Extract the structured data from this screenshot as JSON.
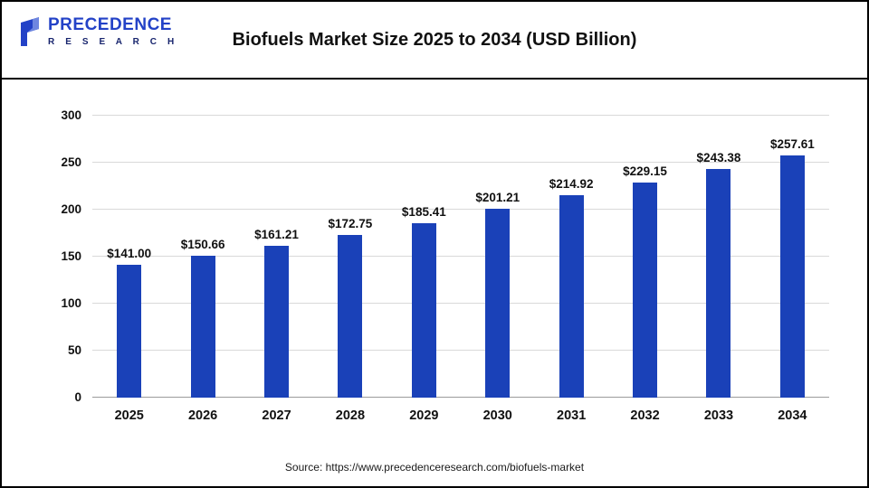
{
  "header": {
    "logo_line1": "PRECEDENCE",
    "logo_line2": "R E S E A R C H",
    "title": "Biofuels Market Size 2025 to 2034 (USD Billion)"
  },
  "footer": {
    "source": "Source: https://www.precedenceresearch.com/biofuels-market"
  },
  "colors": {
    "bar": "#1a41b8",
    "logo_blue": "#2342c7",
    "logo_navy": "#17246d",
    "gridline": "#d9d9d9",
    "axis_line": "#9b9b9b"
  },
  "chart_data": {
    "type": "bar",
    "title": "Biofuels Market Size 2025 to 2034 (USD Billion)",
    "categories": [
      "2025",
      "2026",
      "2027",
      "2028",
      "2029",
      "2030",
      "2031",
      "2032",
      "2033",
      "2034"
    ],
    "values": [
      141.0,
      150.66,
      161.21,
      172.75,
      185.41,
      201.21,
      214.92,
      229.15,
      243.38,
      257.61
    ],
    "value_labels": [
      "$141.00",
      "$150.66",
      "$161.21",
      "$172.75",
      "$185.41",
      "$201.21",
      "$214.92",
      "$229.15",
      "$243.38",
      "$257.61"
    ],
    "xlabel": "",
    "ylabel": "",
    "ylim": [
      0,
      300
    ],
    "yticks": [
      0,
      50,
      100,
      150,
      200,
      250,
      300
    ],
    "grid": true,
    "legend": false,
    "bar_color": "#1a41b8"
  }
}
